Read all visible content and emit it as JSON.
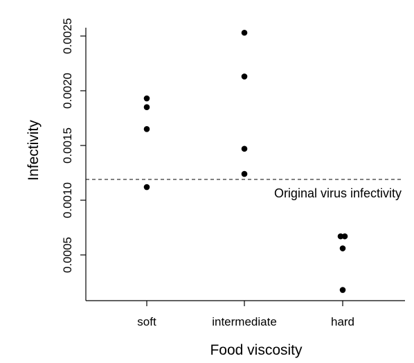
{
  "chart_data": {
    "type": "scatter",
    "xlabel": "Food viscosity",
    "ylabel": "Infectivity",
    "categories": [
      "soft",
      "intermediate",
      "hard"
    ],
    "ylim": [
      0.0,
      0.0025
    ],
    "yticks": [
      "0.0005",
      "0.0010",
      "0.0015",
      "0.0020",
      "0.0025"
    ],
    "grid": false,
    "points": [
      {
        "category": "soft",
        "y": 0.00193
      },
      {
        "category": "soft",
        "y": 0.00185
      },
      {
        "category": "soft",
        "y": 0.00165
      },
      {
        "category": "soft",
        "y": 0.00112
      },
      {
        "category": "intermediate",
        "y": 0.00253
      },
      {
        "category": "intermediate",
        "y": 0.00213
      },
      {
        "category": "intermediate",
        "y": 0.00147
      },
      {
        "category": "intermediate",
        "y": 0.00124
      },
      {
        "category": "hard",
        "y": 0.00067
      },
      {
        "category": "hard",
        "y": 0.00067
      },
      {
        "category": "hard",
        "y": 0.00056
      },
      {
        "category": "hard",
        "y": 0.00018
      }
    ],
    "reference_line": {
      "y": 0.00119,
      "label": "Original virus infectivity",
      "style": "dashed"
    }
  }
}
